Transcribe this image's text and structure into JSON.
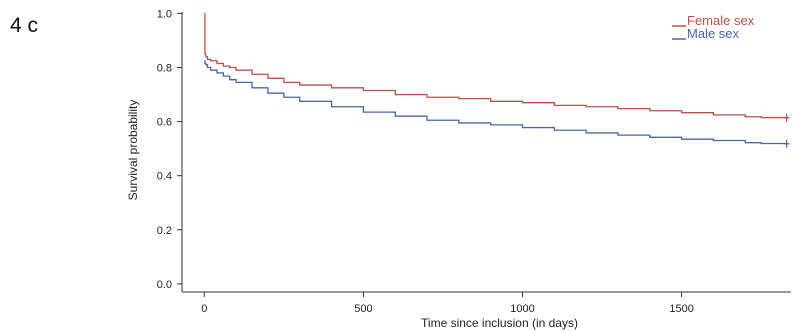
{
  "panel_label": "4 c",
  "chart_data": {
    "type": "line",
    "title": "",
    "xlabel": "Time since inclusion (in days)",
    "ylabel": "Survival probability",
    "xlim": [
      -70,
      1850
    ],
    "ylim": [
      -0.03,
      1.02
    ],
    "xticks": [
      0,
      500,
      1000,
      1500
    ],
    "yticks": [
      0.0,
      0.2,
      0.4,
      0.6,
      0.8,
      1.0
    ],
    "xtick_labels": [
      "0",
      "500",
      "1000",
      "1500"
    ],
    "ytick_labels": [
      "0.0",
      "0.2",
      "0.4",
      "0.6",
      "0.8",
      "1.0"
    ],
    "grid": false,
    "legend_position": "top-right",
    "series": [
      {
        "name": "Female sex",
        "color": "#b5524d",
        "step": true,
        "censor_mark_at_end": true,
        "x": [
          0,
          2,
          5,
          10,
          20,
          40,
          60,
          80,
          100,
          150,
          200,
          250,
          300,
          400,
          500,
          600,
          700,
          800,
          900,
          1000,
          1100,
          1200,
          1300,
          1400,
          1500,
          1600,
          1700,
          1750,
          1830
        ],
        "y": [
          1.0,
          0.85,
          0.84,
          0.83,
          0.825,
          0.815,
          0.805,
          0.8,
          0.79,
          0.775,
          0.76,
          0.745,
          0.735,
          0.725,
          0.715,
          0.7,
          0.69,
          0.685,
          0.675,
          0.67,
          0.66,
          0.655,
          0.648,
          0.64,
          0.633,
          0.625,
          0.618,
          0.615,
          0.614
        ]
      },
      {
        "name": "Male sex",
        "color": "#4a67a0",
        "step": true,
        "censor_mark_at_end": true,
        "x": [
          0,
          2,
          5,
          10,
          20,
          40,
          60,
          80,
          100,
          150,
          200,
          250,
          300,
          400,
          500,
          600,
          700,
          800,
          900,
          1000,
          1100,
          1200,
          1300,
          1400,
          1500,
          1600,
          1700,
          1750,
          1830
        ],
        "y": [
          0.825,
          0.815,
          0.81,
          0.8,
          0.79,
          0.78,
          0.768,
          0.755,
          0.745,
          0.725,
          0.705,
          0.69,
          0.675,
          0.655,
          0.635,
          0.62,
          0.605,
          0.595,
          0.588,
          0.578,
          0.568,
          0.558,
          0.55,
          0.542,
          0.535,
          0.53,
          0.522,
          0.519,
          0.518
        ]
      }
    ]
  }
}
